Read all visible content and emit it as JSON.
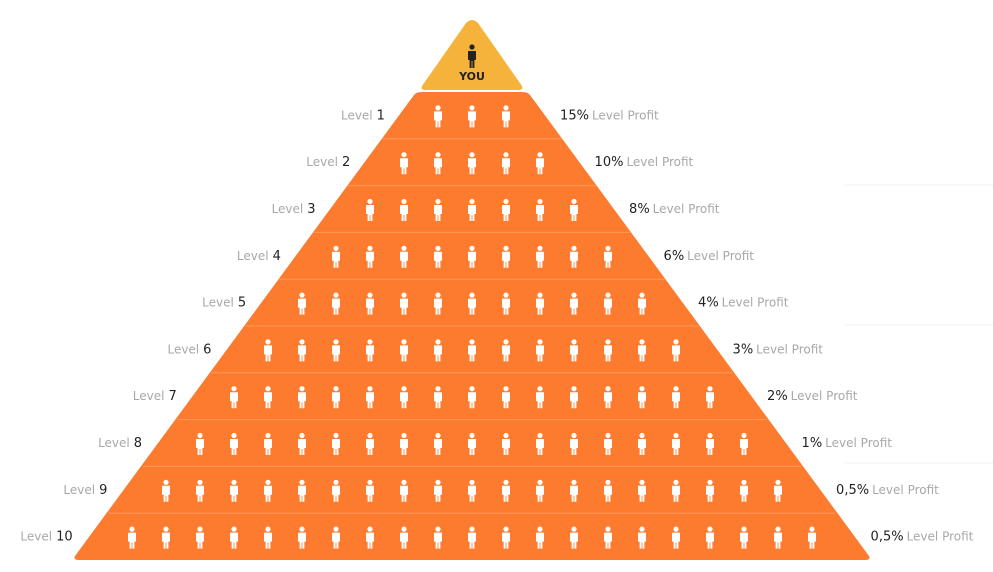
{
  "top": {
    "label": "YOU"
  },
  "levels": [
    {
      "prefix": "Level",
      "number": "1",
      "profit": "15%",
      "profit_label": "Level Profit"
    },
    {
      "prefix": "Level",
      "number": "2",
      "profit": "10%",
      "profit_label": "Level Profit"
    },
    {
      "prefix": "Level",
      "number": "3",
      "profit": "8%",
      "profit_label": "Level Profit"
    },
    {
      "prefix": "Level",
      "number": "4",
      "profit": "6%",
      "profit_label": "Level Profit"
    },
    {
      "prefix": "Level",
      "number": "5",
      "profit": "4%",
      "profit_label": "Level Profit"
    },
    {
      "prefix": "Level",
      "number": "6",
      "profit": "3%",
      "profit_label": "Level Profit"
    },
    {
      "prefix": "Level",
      "number": "7",
      "profit": "2%",
      "profit_label": "Level Profit"
    },
    {
      "prefix": "Level",
      "number": "8",
      "profit": "1%",
      "profit_label": "Level Profit"
    },
    {
      "prefix": "Level",
      "number": "9",
      "profit": "0,5%",
      "profit_label": "Level Profit"
    },
    {
      "prefix": "Level",
      "number": "10",
      "profit": "0,5%",
      "profit_label": "Level Profit"
    }
  ]
}
